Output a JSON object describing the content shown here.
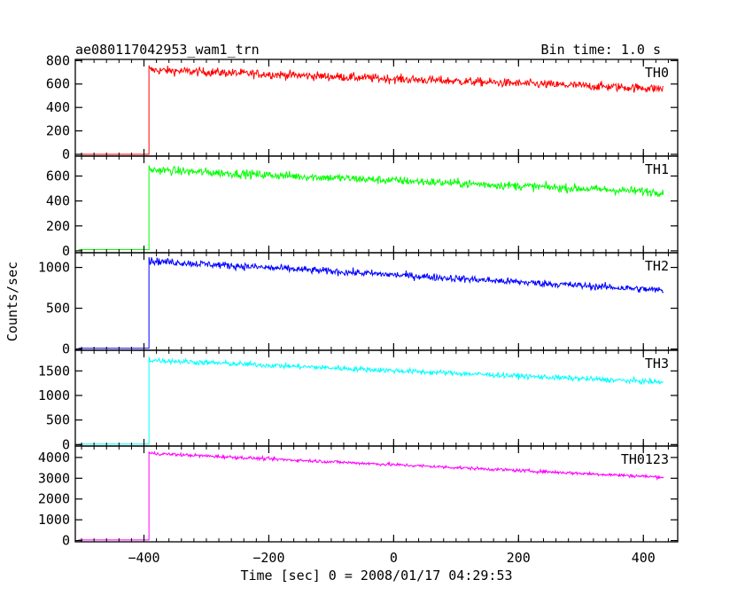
{
  "figure": {
    "title_left": "ae080117042953_wam1_trn",
    "title_right": "Bin time: 1.0 s",
    "xlabel": "Time [sec] 0 = 2008/01/17 04:29:53",
    "ylabel": "Counts/sec"
  },
  "chart_data": {
    "type": "line",
    "x_range": [
      -510,
      455
    ],
    "x_ticks": [
      -400,
      -200,
      0,
      200,
      400
    ],
    "x_tick_labels": [
      "−400",
      "−200",
      "0",
      "200",
      "400"
    ],
    "x_start": -505,
    "x_end": 432,
    "onset": -392,
    "series": [
      {
        "name": "TH0",
        "color": "#ff0000",
        "ylim": [
          -15,
          810
        ],
        "yticks": [
          0,
          200,
          400,
          600,
          800
        ],
        "baseline": 0,
        "start_level": 720,
        "end_level": 560,
        "noise": 38
      },
      {
        "name": "TH1",
        "color": "#00ff00",
        "ylim": [
          -15,
          760
        ],
        "yticks": [
          0,
          200,
          400,
          600
        ],
        "baseline": 10,
        "start_level": 650,
        "end_level": 470,
        "noise": 35
      },
      {
        "name": "TH2",
        "color": "#0000ff",
        "ylim": [
          -15,
          1180
        ],
        "yticks": [
          0,
          500,
          1000
        ],
        "baseline": 10,
        "start_level": 1080,
        "end_level": 720,
        "noise": 45
      },
      {
        "name": "TH3",
        "color": "#00ffff",
        "ylim": [
          -30,
          1920
        ],
        "yticks": [
          0,
          500,
          1000,
          1500
        ],
        "baseline": 10,
        "start_level": 1720,
        "end_level": 1270,
        "noise": 55
      },
      {
        "name": "TH0123",
        "color": "#ff00ff",
        "ylim": [
          -60,
          4550
        ],
        "yticks": [
          0,
          1000,
          2000,
          3000,
          4000
        ],
        "baseline": 30,
        "start_level": 4200,
        "end_level": 3050,
        "noise": 80
      }
    ]
  }
}
